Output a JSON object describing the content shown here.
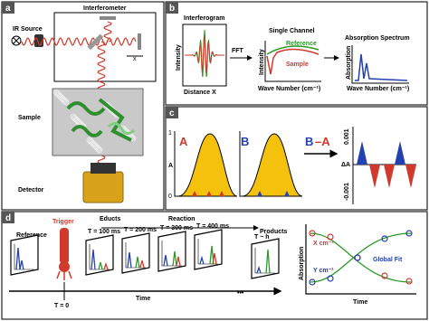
{
  "panels": {
    "a": {
      "label": "a",
      "interferometer": "Interferometer",
      "source": "IR Source",
      "x": "x",
      "sample": "Sample",
      "detector": "Detector"
    },
    "b": {
      "label": "b",
      "interferogram": "Interferogram",
      "y1": "Intensity",
      "x1": "Distance X",
      "fft": "FFT",
      "single": "Single Channel",
      "reference": "Reference",
      "y2": "Intensity",
      "sample": "Sample",
      "x2": "Wave Number (cm⁻¹)",
      "absorption": "Absorption Spectrum",
      "y3": "Absorption",
      "x3": "Wave Number (cm⁻¹)"
    },
    "c": {
      "label": "c",
      "a": "A",
      "axis_a": "A",
      "one": "1",
      "zero": "0",
      "b": "B",
      "diff_b": "B",
      "diff_a": "–A",
      "top": "0.001",
      "delta": "ΔA",
      "bottom": "-0.001"
    },
    "d": {
      "label": "d",
      "reference": "Reference",
      "trigger": "Trigger",
      "t0": "T = 0",
      "educts": "Educts",
      "reaction": "Reaction",
      "products": "Products",
      "frames": [
        "T = 100 ms",
        "T = 200 ms",
        "T = 300 ms",
        "T = 400 ms"
      ],
      "final": "T ~ h",
      "time": "Time",
      "dots": "•••",
      "y": "Absorption",
      "xcm": "X cm⁻¹",
      "ycm": "Y cm⁻¹",
      "fit": "Global Fit",
      "time2": "Time"
    }
  }
}
